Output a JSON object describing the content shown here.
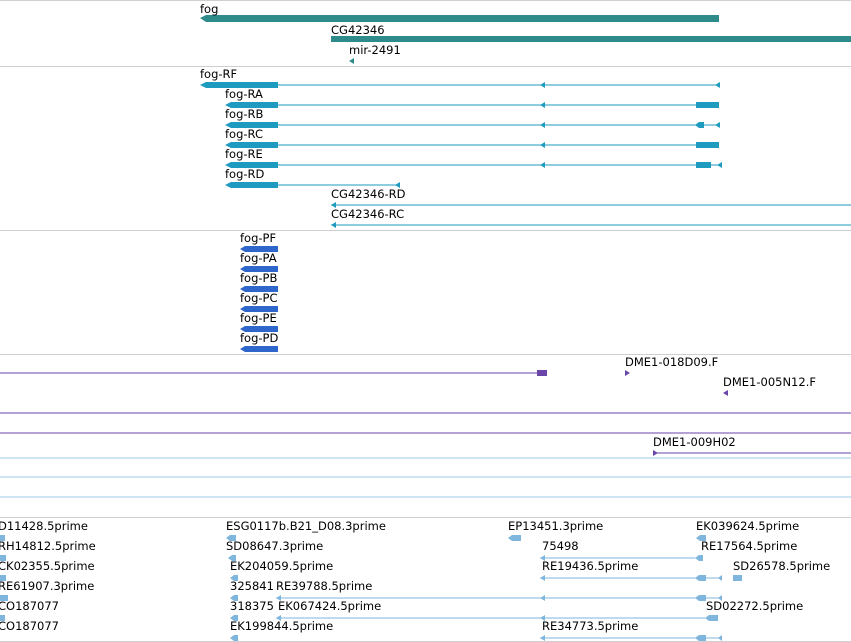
{
  "genes": {
    "fog": "fog",
    "cg42346": "CG42346",
    "mir2491": "mir-2491"
  },
  "transcripts": {
    "fog_rf": "fog-RF",
    "fog_ra": "fog-RA",
    "fog_rb": "fog-RB",
    "fog_rc": "fog-RC",
    "fog_re": "fog-RE",
    "fog_rd": "fog-RD",
    "cg42346_rd": "CG42346-RD",
    "cg42346_rc": "CG42346-RC"
  },
  "proteins": {
    "fog_pf": "fog-PF",
    "fog_pa": "fog-PA",
    "fog_pb": "fog-PB",
    "fog_pc": "fog-PC",
    "fog_pe": "fog-PE",
    "fog_pd": "fog-PD"
  },
  "clones": {
    "dme1_018d09": "DME1-018D09.F",
    "dme1_005n12": "DME1-005N12.F",
    "dme1_009h02": "DME1-009H02"
  },
  "ests": {
    "r1": [
      "D11428.5prime",
      "ESG0117b.B21_D08.3prime",
      "EP13451.3prime",
      "EK039624.5prime"
    ],
    "r2": [
      "RH14812.5prime",
      "SD08647.3prime",
      "75498",
      "RE17564.5prime"
    ],
    "r3": [
      "CK02355.5prime",
      "EK204059.5prime",
      "RE19436.5prime",
      "SD26578.5prime"
    ],
    "r4": [
      "RE61907.3prime",
      "325841",
      "RE39788.5prime"
    ],
    "r5": [
      "CO187077",
      "318375",
      "EK067424.5prime",
      "SD02272.5prime"
    ],
    "r6": [
      "CO187077",
      "EK199844.5prime",
      "RE34773.5prime"
    ]
  },
  "colors": {
    "gene": "#2f8a8a",
    "transcript": "#1e9bbf",
    "protein": "#2f66cc",
    "clone": "#6a46a8",
    "est": "#7fb6dd"
  }
}
